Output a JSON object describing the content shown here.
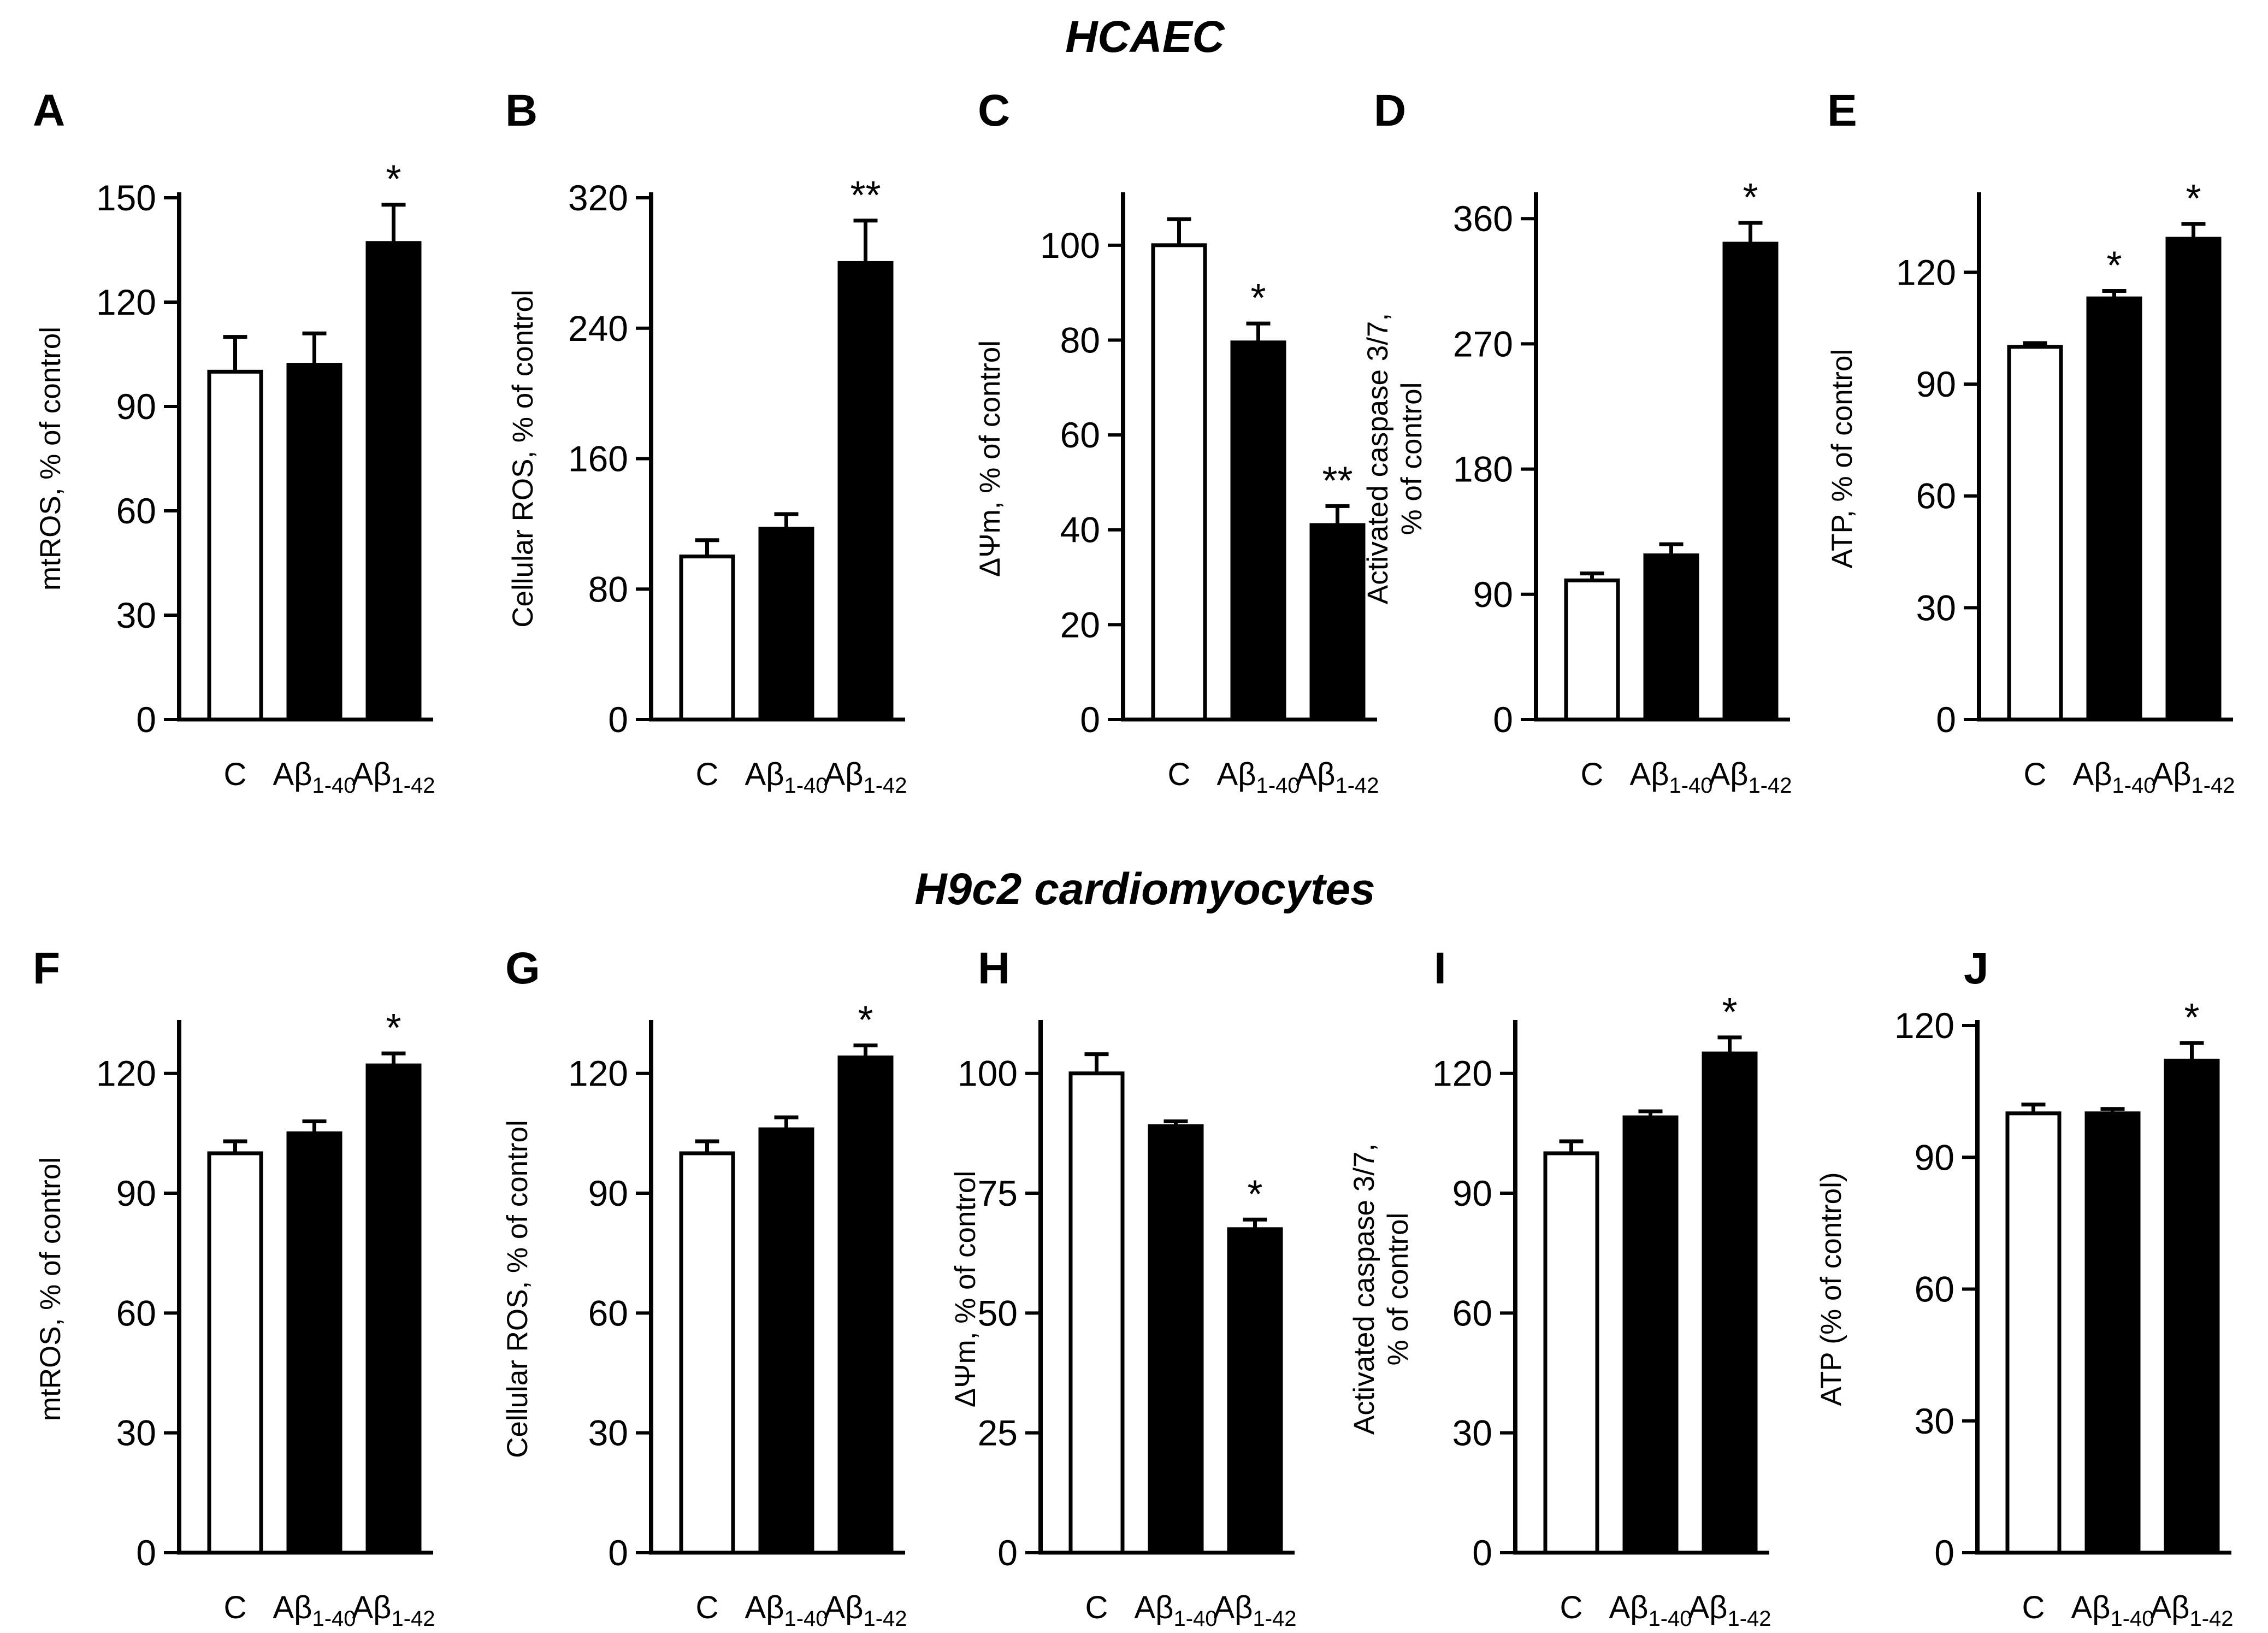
{
  "sections": [
    {
      "title": "HCAEC"
    },
    {
      "title": "H9c2 cardiomyocytes"
    }
  ],
  "chart_data": [
    {
      "panel": "A",
      "type": "bar",
      "title": "",
      "ylabel": "mtROS, % of control",
      "categories": [
        "C",
        "Aβ1-40",
        "Aβ1-42"
      ],
      "values": [
        100,
        102,
        137
      ],
      "errors": [
        10,
        9,
        11
      ],
      "significance": [
        "",
        "",
        "*"
      ],
      "ylim": [
        0,
        150
      ],
      "yticks": [
        0,
        30,
        60,
        90,
        120,
        150
      ],
      "bar_colors": [
        "#ffffff",
        "#000000",
        "#000000"
      ]
    },
    {
      "panel": "B",
      "type": "bar",
      "title": "",
      "ylabel": "Cellular ROS, % of control",
      "categories": [
        "C",
        "Aβ1-40",
        "Aβ1-42"
      ],
      "values": [
        100,
        117,
        280
      ],
      "errors": [
        10,
        9,
        26
      ],
      "significance": [
        "",
        "",
        "**"
      ],
      "ylim": [
        0,
        320
      ],
      "yticks": [
        0,
        80,
        160,
        240,
        320
      ],
      "bar_colors": [
        "#ffffff",
        "#000000",
        "#000000"
      ]
    },
    {
      "panel": "C",
      "type": "bar",
      "title": "",
      "ylabel": "ΔΨm, % of control",
      "categories": [
        "C",
        "Aβ1-40",
        "Aβ1-42"
      ],
      "values": [
        100,
        79.5,
        41
      ],
      "errors": [
        5.5,
        4,
        4
      ],
      "significance": [
        "",
        "*",
        "**"
      ],
      "ylim": [
        0,
        110
      ],
      "yticks": [
        0,
        20,
        40,
        60,
        80,
        100
      ],
      "bar_colors": [
        "#ffffff",
        "#000000",
        "#000000"
      ]
    },
    {
      "panel": "D",
      "type": "bar",
      "title": "",
      "ylabel_lines": [
        "Activated caspase 3/7,",
        "% of control"
      ],
      "categories": [
        "C",
        "Aβ1-40",
        "Aβ1-42"
      ],
      "values": [
        100,
        118,
        342
      ],
      "errors": [
        5,
        8,
        15
      ],
      "significance": [
        "",
        "",
        "*"
      ],
      "ylim": [
        0,
        375
      ],
      "yticks": [
        0,
        90,
        180,
        270,
        360
      ],
      "bar_colors": [
        "#ffffff",
        "#000000",
        "#000000"
      ]
    },
    {
      "panel": "E",
      "type": "bar",
      "title": "",
      "ylabel": "ATP, % of control",
      "categories": [
        "C",
        "Aβ1-40",
        "Aβ1-42"
      ],
      "values": [
        100,
        113,
        129
      ],
      "errors": [
        1,
        2,
        4
      ],
      "significance": [
        "",
        "*",
        "*"
      ],
      "ylim": [
        0,
        140
      ],
      "yticks": [
        0,
        30,
        60,
        90,
        120
      ],
      "bar_colors": [
        "#ffffff",
        "#000000",
        "#000000"
      ]
    },
    {
      "panel": "F",
      "type": "bar",
      "title": "",
      "ylabel": "mtROS, % of control",
      "categories": [
        "C",
        "Aβ1-40",
        "Aβ1-42"
      ],
      "values": [
        100,
        105,
        122
      ],
      "errors": [
        3,
        3,
        3
      ],
      "significance": [
        "",
        "",
        "*"
      ],
      "ylim": [
        0,
        132
      ],
      "yticks": [
        0,
        30,
        60,
        90,
        120
      ],
      "bar_colors": [
        "#ffffff",
        "#000000",
        "#000000"
      ]
    },
    {
      "panel": "G",
      "type": "bar",
      "title": "",
      "ylabel": "Cellular ROS, % of control",
      "categories": [
        "C",
        "Aβ1-40",
        "Aβ1-42"
      ],
      "values": [
        100,
        106,
        124
      ],
      "errors": [
        3,
        3,
        3
      ],
      "significance": [
        "",
        "",
        "*"
      ],
      "ylim": [
        0,
        132
      ],
      "yticks": [
        0,
        30,
        60,
        90,
        120
      ],
      "bar_colors": [
        "#ffffff",
        "#000000",
        "#000000"
      ]
    },
    {
      "panel": "H",
      "type": "bar",
      "title": "",
      "ylabel": "ΔΨm, % of control",
      "categories": [
        "C",
        "Aβ1-40",
        "Aβ1-42"
      ],
      "values": [
        100,
        89,
        67.5
      ],
      "errors": [
        4,
        1,
        2
      ],
      "significance": [
        "",
        "",
        "*"
      ],
      "ylim": [
        0,
        110
      ],
      "yticks": [
        0,
        25,
        50,
        75,
        100
      ],
      "bar_colors": [
        "#ffffff",
        "#000000",
        "#000000"
      ]
    },
    {
      "panel": "I",
      "type": "bar",
      "title": "",
      "ylabel_lines": [
        "Activated caspase 3/7,",
        "% of control"
      ],
      "categories": [
        "C",
        "Aβ1-40",
        "Aβ1-42"
      ],
      "values": [
        100,
        109,
        125
      ],
      "errors": [
        3,
        1.5,
        4
      ],
      "significance": [
        "",
        "",
        "*"
      ],
      "ylim": [
        0,
        132
      ],
      "yticks": [
        0,
        30,
        60,
        90,
        120
      ],
      "bar_colors": [
        "#ffffff",
        "#000000",
        "#000000"
      ]
    },
    {
      "panel": "J",
      "type": "bar",
      "title": "",
      "ylabel": "ATP (% of control)",
      "categories": [
        "C",
        "Aβ1-40",
        "Aβ1-42"
      ],
      "values": [
        100,
        100,
        112
      ],
      "errors": [
        2,
        1,
        4
      ],
      "significance": [
        "",
        "",
        "*"
      ],
      "ylim": [
        0,
        120
      ],
      "yticks": [
        0,
        30,
        60,
        90,
        120
      ],
      "bar_colors": [
        "#ffffff",
        "#000000",
        "#000000"
      ]
    }
  ]
}
